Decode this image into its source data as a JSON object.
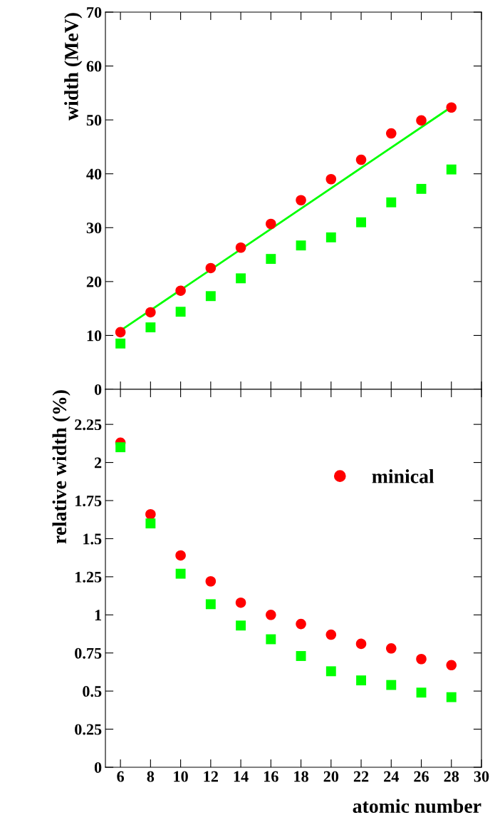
{
  "chart_data": [
    {
      "type": "scatter",
      "ylabel": "width (MeV)",
      "xlim": [
        5,
        30
      ],
      "ylim": [
        0,
        70
      ],
      "yticks": [
        0,
        10,
        20,
        30,
        40,
        50,
        60,
        70
      ],
      "xticks": [
        6,
        8,
        10,
        12,
        14,
        16,
        18,
        20,
        22,
        24,
        26,
        28,
        30
      ],
      "tick_labels": "y",
      "grid": false,
      "legend": false,
      "x": [
        6,
        8,
        10,
        12,
        14,
        16,
        18,
        20,
        22,
        24,
        26,
        28
      ],
      "series": [
        {
          "color": "#ff0000",
          "marker": "circle",
          "values": [
            10.6,
            14.3,
            18.3,
            22.5,
            26.3,
            30.7,
            35.1,
            39.0,
            42.6,
            47.5,
            49.9,
            52.3
          ]
        },
        {
          "color": "#00ff00",
          "marker": "square",
          "values": [
            8.5,
            11.5,
            14.4,
            17.3,
            20.6,
            24.2,
            26.7,
            28.2,
            31.0,
            34.7,
            37.2,
            40.8
          ]
        },
        {
          "type": "line",
          "color": "#00ff00",
          "marker": "none",
          "line_style": "solid",
          "x": [
            6,
            28
          ],
          "values": [
            10.9,
            52.4
          ]
        }
      ]
    },
    {
      "type": "scatter",
      "ylabel": "relative width (%)",
      "xlabel": "atomic number",
      "xlim": [
        5,
        30
      ],
      "ylim": [
        0,
        2.48
      ],
      "yticks": [
        0,
        {
          "value": 0.25,
          "label": "0.25"
        },
        0.5,
        {
          "value": 0.75,
          "label": "0.75"
        },
        1,
        {
          "value": 1.25,
          "label": "1.25"
        },
        1.5,
        {
          "value": 1.75,
          "label": "1.75"
        },
        2,
        {
          "value": 2.25,
          "label": "2.25"
        }
      ],
      "xticks": [
        6,
        8,
        10,
        12,
        14,
        16,
        18,
        20,
        22,
        24,
        26,
        28,
        30
      ],
      "grid": false,
      "legend": "top right",
      "x": [
        6,
        8,
        10,
        12,
        14,
        16,
        18,
        20,
        22,
        24,
        26,
        28
      ],
      "series": [
        {
          "name": "minical",
          "color": "#ff0000",
          "marker": "circle",
          "values": [
            2.13,
            1.66,
            1.39,
            1.22,
            1.08,
            1.0,
            0.94,
            0.87,
            0.81,
            0.78,
            0.71,
            0.67
          ]
        },
        {
          "color": "#00ff00",
          "marker": "square",
          "values": [
            2.1,
            1.6,
            1.27,
            1.07,
            0.93,
            0.84,
            0.73,
            0.63,
            0.57,
            0.54,
            0.49,
            0.46
          ]
        }
      ]
    }
  ]
}
